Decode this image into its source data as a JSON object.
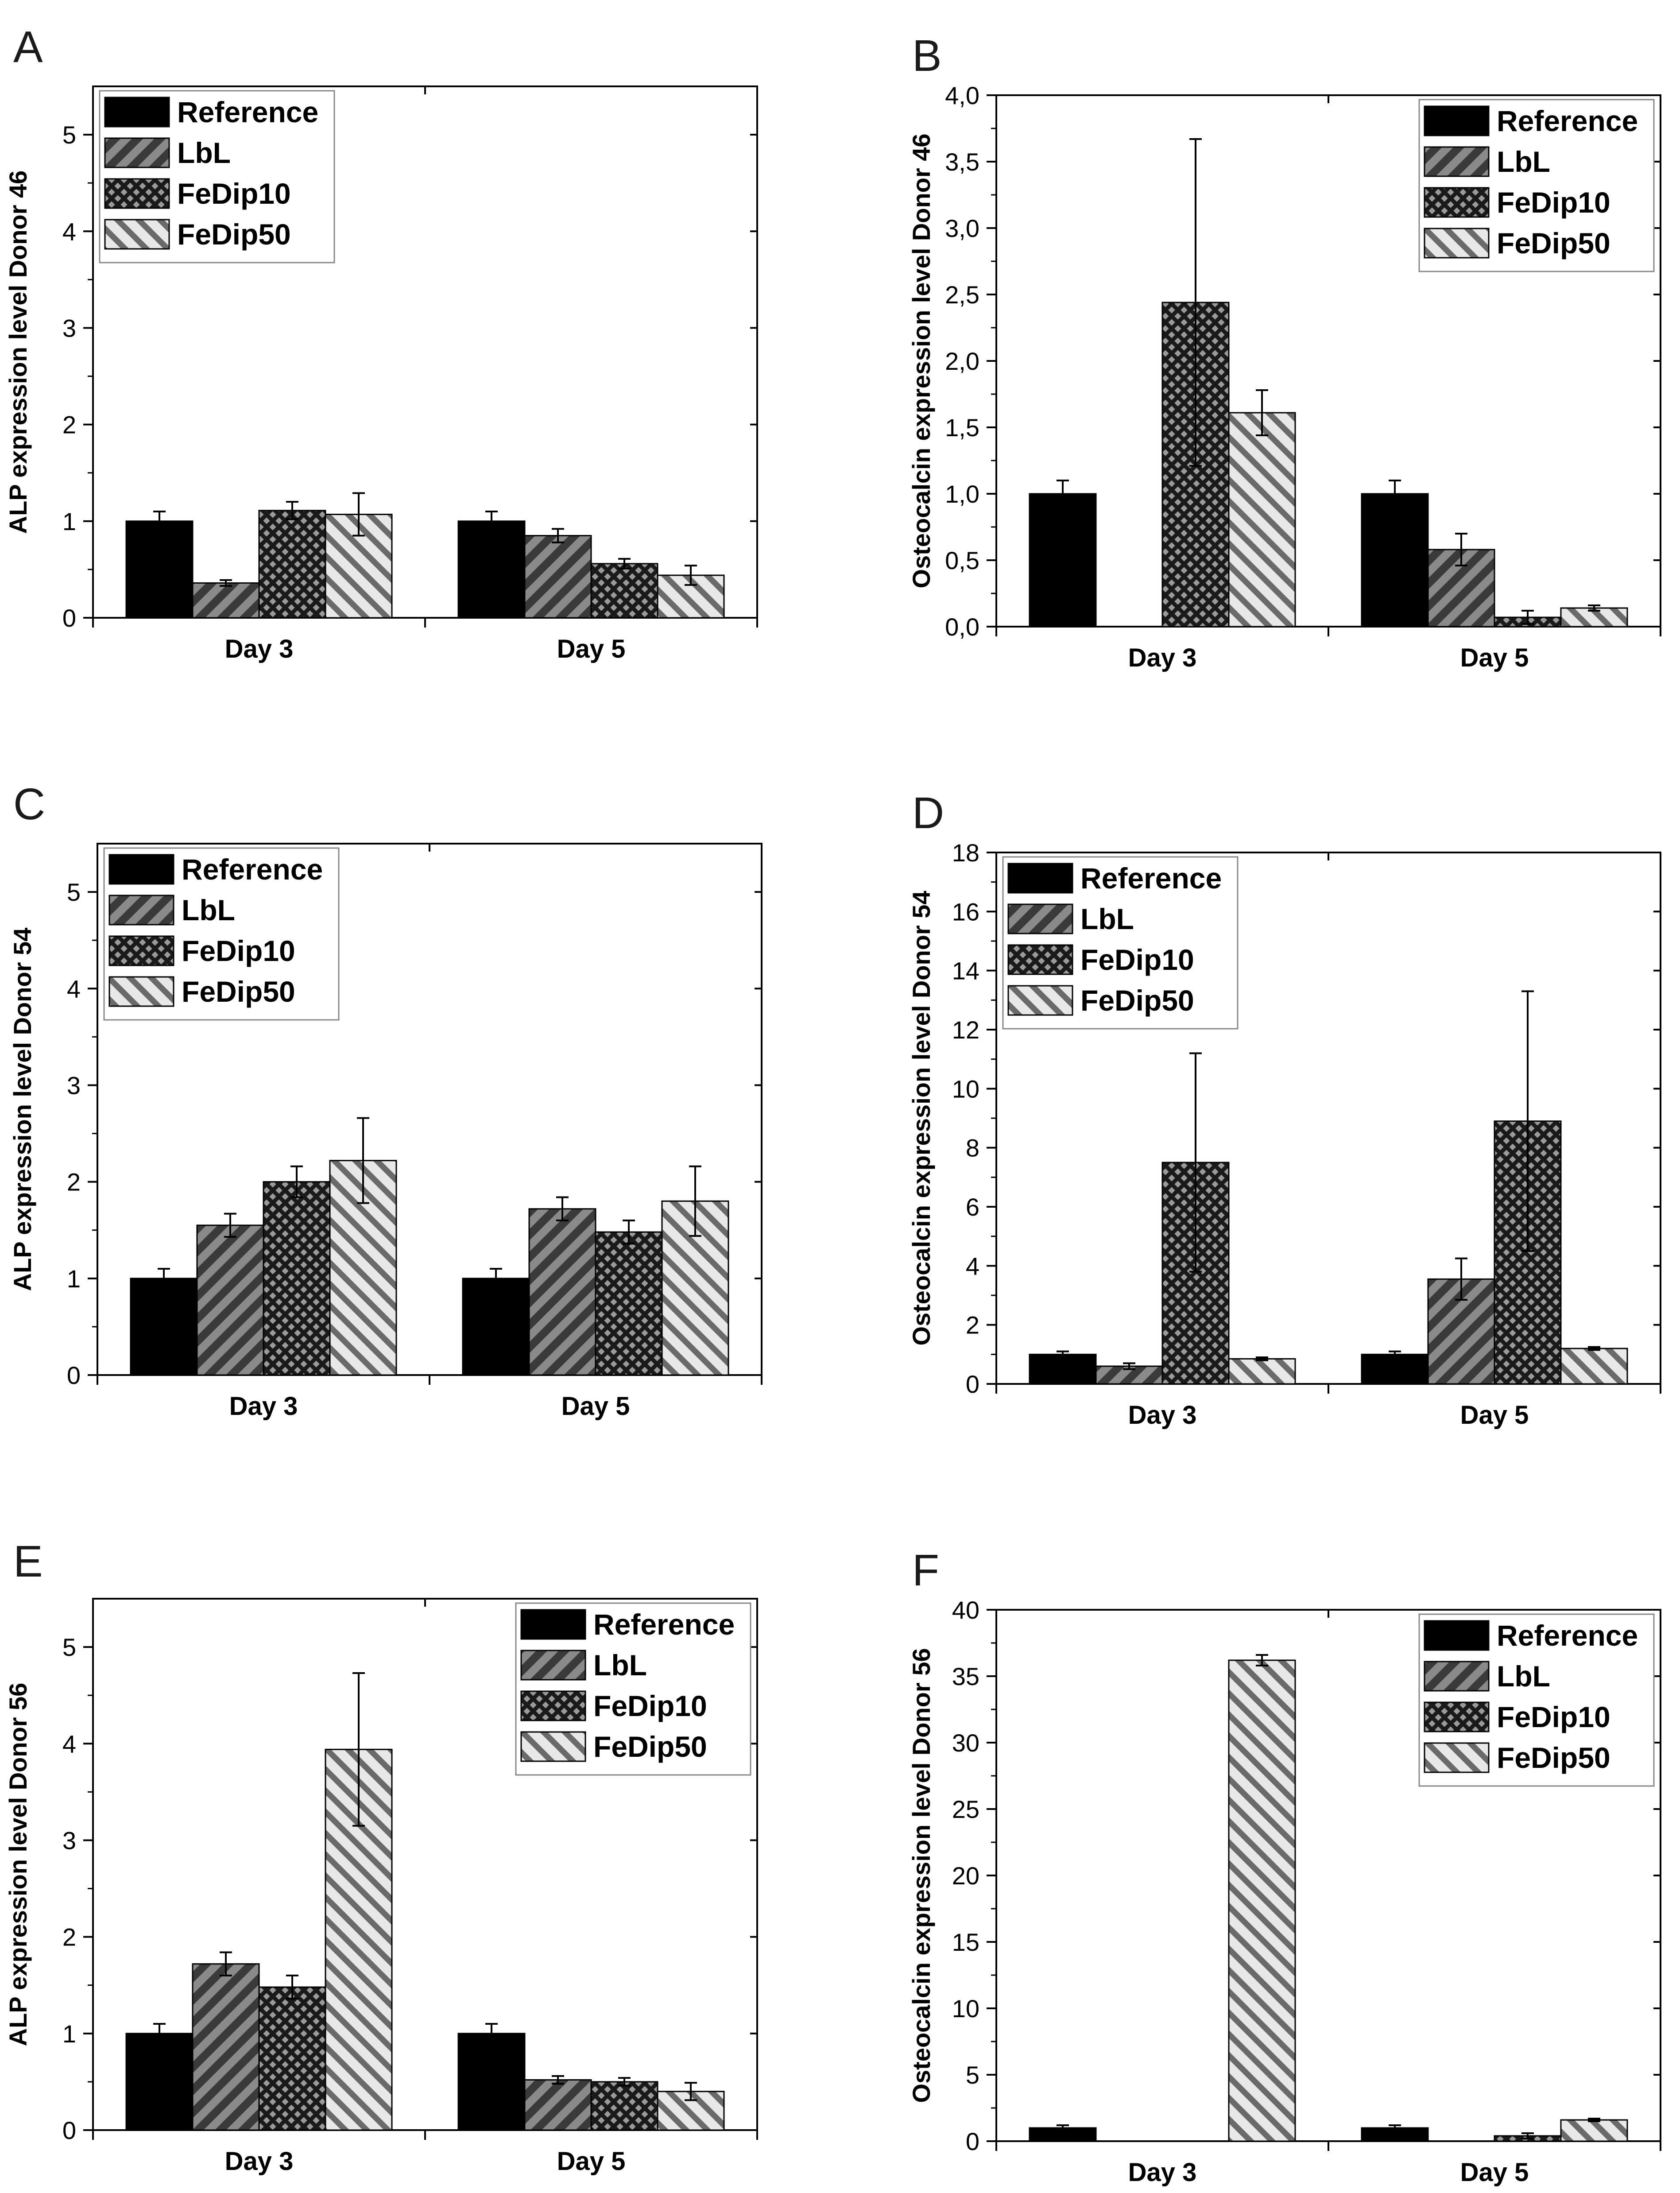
{
  "figure": {
    "legend_entries": [
      "Reference",
      "LbL",
      "FeDip10",
      "FeDip50"
    ],
    "colors": {
      "reference": "#000000",
      "lbl": "#3a3a3a",
      "fedip10": "#2a2a2a",
      "fedip50": "#b8b8b8",
      "axis": "#000000"
    }
  },
  "chart_data": [
    {
      "panel": "A",
      "type": "bar",
      "categories": [
        "Day 3",
        "Day 5"
      ],
      "series": [
        {
          "name": "Reference",
          "values": [
            1.0,
            1.0
          ],
          "errors": [
            0.1,
            0.1
          ]
        },
        {
          "name": "LbL",
          "values": [
            0.36,
            0.85
          ],
          "errors": [
            0.03,
            0.07
          ]
        },
        {
          "name": "FeDip10",
          "values": [
            1.11,
            0.56
          ],
          "errors": [
            0.09,
            0.05
          ]
        },
        {
          "name": "FeDip50",
          "values": [
            1.07,
            0.44
          ],
          "errors": [
            0.22,
            0.1
          ]
        }
      ],
      "ylabel": "ALP expression level Donor 46",
      "ylim": [
        0,
        5.5
      ],
      "yticks": [
        "0",
        "1",
        "2",
        "3",
        "4",
        "5"
      ],
      "legend_position": "top-left"
    },
    {
      "panel": "B",
      "type": "bar",
      "categories": [
        "Day 3",
        "Day 5"
      ],
      "series": [
        {
          "name": "Reference",
          "values": [
            1.0,
            1.0
          ],
          "errors": [
            0.1,
            0.1
          ]
        },
        {
          "name": "LbL",
          "values": [
            0.0,
            0.58
          ],
          "errors": [
            0.0,
            0.12
          ]
        },
        {
          "name": "FeDip10",
          "values": [
            2.44,
            0.07
          ],
          "errors": [
            1.23,
            0.05
          ]
        },
        {
          "name": "FeDip50",
          "values": [
            1.61,
            0.14
          ],
          "errors": [
            0.17,
            0.02
          ]
        }
      ],
      "ylabel": "Osteocalcin expression level Donor 46",
      "ylim": [
        0,
        4.0
      ],
      "yticks": [
        "0,0",
        "0,5",
        "1,0",
        "1,5",
        "2,0",
        "2,5",
        "3,0",
        "3,5",
        "4,0"
      ],
      "legend_position": "top-right"
    },
    {
      "panel": "C",
      "type": "bar",
      "categories": [
        "Day 3",
        "Day 5"
      ],
      "series": [
        {
          "name": "Reference",
          "values": [
            1.0,
            1.0
          ],
          "errors": [
            0.1,
            0.1
          ]
        },
        {
          "name": "LbL",
          "values": [
            1.55,
            1.72
          ],
          "errors": [
            0.12,
            0.12
          ]
        },
        {
          "name": "FeDip10",
          "values": [
            2.0,
            1.48
          ],
          "errors": [
            0.16,
            0.12
          ]
        },
        {
          "name": "FeDip50",
          "values": [
            2.22,
            1.8
          ],
          "errors": [
            0.44,
            0.36
          ]
        }
      ],
      "ylabel": "ALP expression level Donor 54",
      "ylim": [
        0,
        5.5
      ],
      "yticks": [
        "0",
        "1",
        "2",
        "3",
        "4",
        "5"
      ],
      "legend_position": "top-left"
    },
    {
      "panel": "D",
      "type": "bar",
      "categories": [
        "Day 3",
        "Day 5"
      ],
      "series": [
        {
          "name": "Reference",
          "values": [
            1.0,
            1.0
          ],
          "errors": [
            0.1,
            0.1
          ]
        },
        {
          "name": "LbL",
          "values": [
            0.6,
            3.55
          ],
          "errors": [
            0.1,
            0.7
          ]
        },
        {
          "name": "FeDip10",
          "values": [
            7.5,
            8.9
          ],
          "errors": [
            3.7,
            4.4
          ]
        },
        {
          "name": "FeDip50",
          "values": [
            0.85,
            1.2
          ],
          "errors": [
            0.05,
            0.05
          ]
        }
      ],
      "ylabel": "Osteocalcin expression level Donor 54",
      "ylim": [
        0,
        18
      ],
      "yticks": [
        "0",
        "2",
        "4",
        "6",
        "8",
        "10",
        "12",
        "14",
        "16",
        "18"
      ],
      "legend_position": "top-left"
    },
    {
      "panel": "E",
      "type": "bar",
      "categories": [
        "Day 3",
        "Day 5"
      ],
      "series": [
        {
          "name": "Reference",
          "values": [
            1.0,
            1.0
          ],
          "errors": [
            0.1,
            0.1
          ]
        },
        {
          "name": "LbL",
          "values": [
            1.72,
            0.52
          ],
          "errors": [
            0.12,
            0.04
          ]
        },
        {
          "name": "FeDip10",
          "values": [
            1.48,
            0.5
          ],
          "errors": [
            0.12,
            0.04
          ]
        },
        {
          "name": "FeDip50",
          "values": [
            3.94,
            0.4
          ],
          "errors": [
            0.79,
            0.09
          ]
        }
      ],
      "ylabel": "ALP expression level Donor 56",
      "ylim": [
        0,
        5.5
      ],
      "yticks": [
        "0",
        "1",
        "2",
        "3",
        "4",
        "5"
      ],
      "legend_position": "top-right"
    },
    {
      "panel": "F",
      "type": "bar",
      "categories": [
        "Day 3",
        "Day 5"
      ],
      "series": [
        {
          "name": "Reference",
          "values": [
            1.0,
            1.0
          ],
          "errors": [
            0.2,
            0.2
          ]
        },
        {
          "name": "LbL",
          "values": [
            0.0,
            0.0
          ],
          "errors": [
            0.0,
            0.0
          ]
        },
        {
          "name": "FeDip10",
          "values": [
            0.0,
            0.4
          ],
          "errors": [
            0.0,
            0.2
          ]
        },
        {
          "name": "FeDip50",
          "values": [
            36.2,
            1.6
          ],
          "errors": [
            0.4,
            0.1
          ]
        }
      ],
      "ylabel": "Osteocalcin expression level Donor 56",
      "ylim": [
        0,
        40
      ],
      "yticks": [
        "0",
        "5",
        "10",
        "15",
        "20",
        "25",
        "30",
        "35",
        "40"
      ],
      "legend_position": "top-right"
    }
  ]
}
